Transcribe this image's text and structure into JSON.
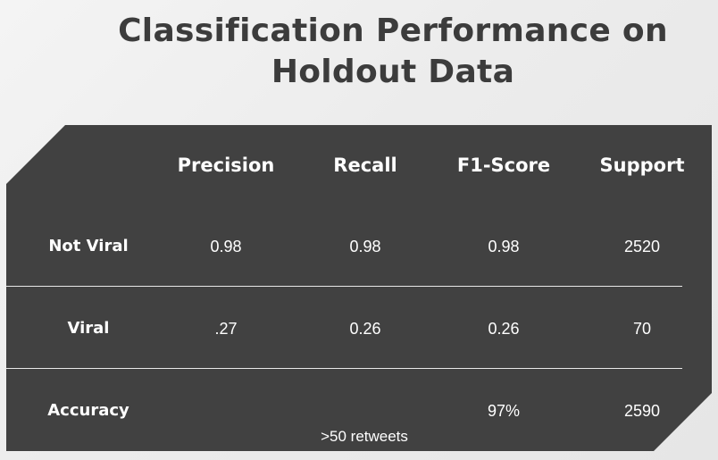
{
  "title_line1": "Classification Performance on",
  "title_line2": "Holdout Data",
  "chart_data": {
    "type": "table",
    "columns": [
      "Precision",
      "Recall",
      "F1-Score",
      "Support"
    ],
    "rows": [
      {
        "label": "Not Viral",
        "values": [
          "0.98",
          "0.98",
          "0.98",
          "2520"
        ]
      },
      {
        "label": "Viral",
        "values": [
          ".27",
          "0.26",
          "0.26",
          "70"
        ]
      },
      {
        "label": "Accuracy",
        "values": [
          "",
          "",
          "97%",
          "2590"
        ]
      }
    ],
    "note": ">50 retweets"
  },
  "colors": {
    "panel": "#414141",
    "title": "#3c3c3c",
    "text": "#ffffff",
    "divider": "#e8e8e8"
  }
}
